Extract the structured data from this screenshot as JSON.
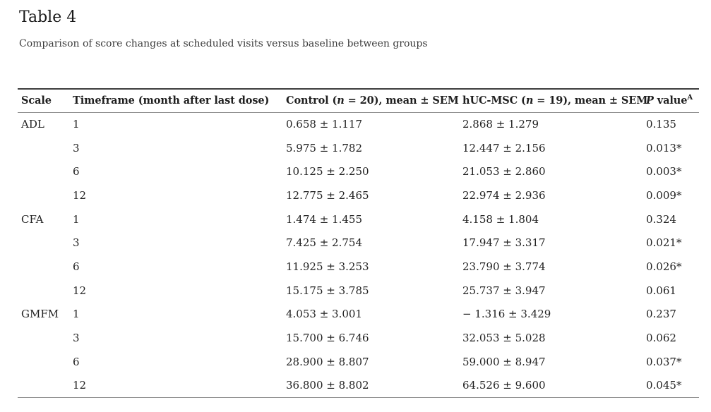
{
  "page": {
    "title": "Table 4",
    "caption": "Comparison of score changes at scheduled visits versus baseline between groups"
  },
  "colors": {
    "background": "#ffffff",
    "text": "#222222",
    "caption_text": "#3c3c3c",
    "top_border": "#3d3d3d",
    "thin_border": "#8f8f8f"
  },
  "table": {
    "header": {
      "scale": "Scale",
      "timeframe": "Timeframe (month after last dose)",
      "control": {
        "pre": "Control (",
        "n": "n",
        "post": " = 20), mean ± SEM"
      },
      "hucmsc": {
        "pre": "hUC-MSC (",
        "n": "n",
        "post": " = 19), mean ± SEM"
      },
      "pvalue": {
        "p": "P",
        "rest": " value",
        "sup": "A"
      }
    },
    "rows": [
      {
        "scale": "ADL",
        "timeframe": "1",
        "control": "0.658 ± 1.117",
        "hucmsc": "2.868 ± 1.279",
        "pvalue": "0.135"
      },
      {
        "scale": "",
        "timeframe": "3",
        "control": "5.975 ± 1.782",
        "hucmsc": "12.447 ± 2.156",
        "pvalue": "0.013*"
      },
      {
        "scale": "",
        "timeframe": "6",
        "control": "10.125 ± 2.250",
        "hucmsc": "21.053 ± 2.860",
        "pvalue": "0.003*"
      },
      {
        "scale": "",
        "timeframe": "12",
        "control": "12.775 ± 2.465",
        "hucmsc": "22.974 ± 2.936",
        "pvalue": "0.009*"
      },
      {
        "scale": "CFA",
        "timeframe": "1",
        "control": "1.474 ± 1.455",
        "hucmsc": "4.158 ± 1.804",
        "pvalue": "0.324"
      },
      {
        "scale": "",
        "timeframe": "3",
        "control": "7.425 ± 2.754",
        "hucmsc": "17.947 ± 3.317",
        "pvalue": "0.021*"
      },
      {
        "scale": "",
        "timeframe": "6",
        "control": "11.925 ± 3.253",
        "hucmsc": "23.790 ± 3.774",
        "pvalue": "0.026*"
      },
      {
        "scale": "",
        "timeframe": "12",
        "control": "15.175 ± 3.785",
        "hucmsc": "25.737 ± 3.947",
        "pvalue": "0.061"
      },
      {
        "scale": "GMFM",
        "timeframe": "1",
        "control": "4.053 ± 3.001",
        "hucmsc": "− 1.316 ± 3.429",
        "pvalue": "0.237"
      },
      {
        "scale": "",
        "timeframe": "3",
        "control": "15.700 ± 6.746",
        "hucmsc": "32.053 ± 5.028",
        "pvalue": "0.062"
      },
      {
        "scale": "",
        "timeframe": "6",
        "control": "28.900 ± 8.807",
        "hucmsc": "59.000 ± 8.947",
        "pvalue": "0.037*"
      },
      {
        "scale": "",
        "timeframe": "12",
        "control": "36.800 ± 8.802",
        "hucmsc": "64.526 ± 9.600",
        "pvalue": "0.045*"
      }
    ]
  }
}
